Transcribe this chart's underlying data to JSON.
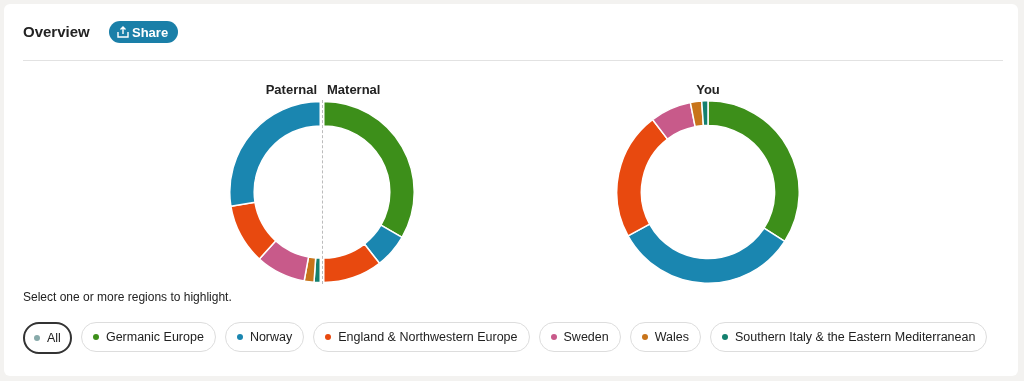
{
  "chart_data": [
    {
      "type": "donut",
      "title": "Paternal",
      "categories": [
        "Germanic Europe",
        "Norway",
        "England & Northwestern Europe",
        "Sweden",
        "Wales",
        "Southern Italy & the Eastern Mediterranean"
      ],
      "values": [
        0,
        55,
        21.5,
        17.8,
        3.5,
        2.2
      ],
      "colors": [
        "#3d8f1a",
        "#1a86b0",
        "#e8490f",
        "#c85a8a",
        "#c8741a",
        "#13806e"
      ],
      "legend": "bottom",
      "legend_title": "All"
    },
    {
      "type": "donut",
      "title": "Maternal",
      "categories": [
        null,
        null,
        null,
        null,
        null,
        null
      ],
      "values": [
        66.7,
        12.2,
        21.1,
        0,
        0,
        0
      ],
      "colors": [
        "#3d8f1a",
        "#1a86b0",
        "#e8490f",
        "#c85a8a",
        "#c8741a",
        "#13806e"
      ]
    },
    {
      "type": "donut",
      "title": "You",
      "categories": [
        null,
        null,
        null,
        null,
        null,
        null
      ],
      "values": [
        34.1,
        32.9,
        22.6,
        7.3,
        2,
        1.1
      ],
      "colors": [
        "#3d8f1a",
        "#1a86b0",
        "#e8490f",
        "#c85a8a",
        "#c8741a",
        "#13806e"
      ]
    },
    {
      "type": "other",
      "title": "Overview",
      "annotations": [
        "Share",
        "Select one or more regions to highlight."
      ]
    }
  ]
}
